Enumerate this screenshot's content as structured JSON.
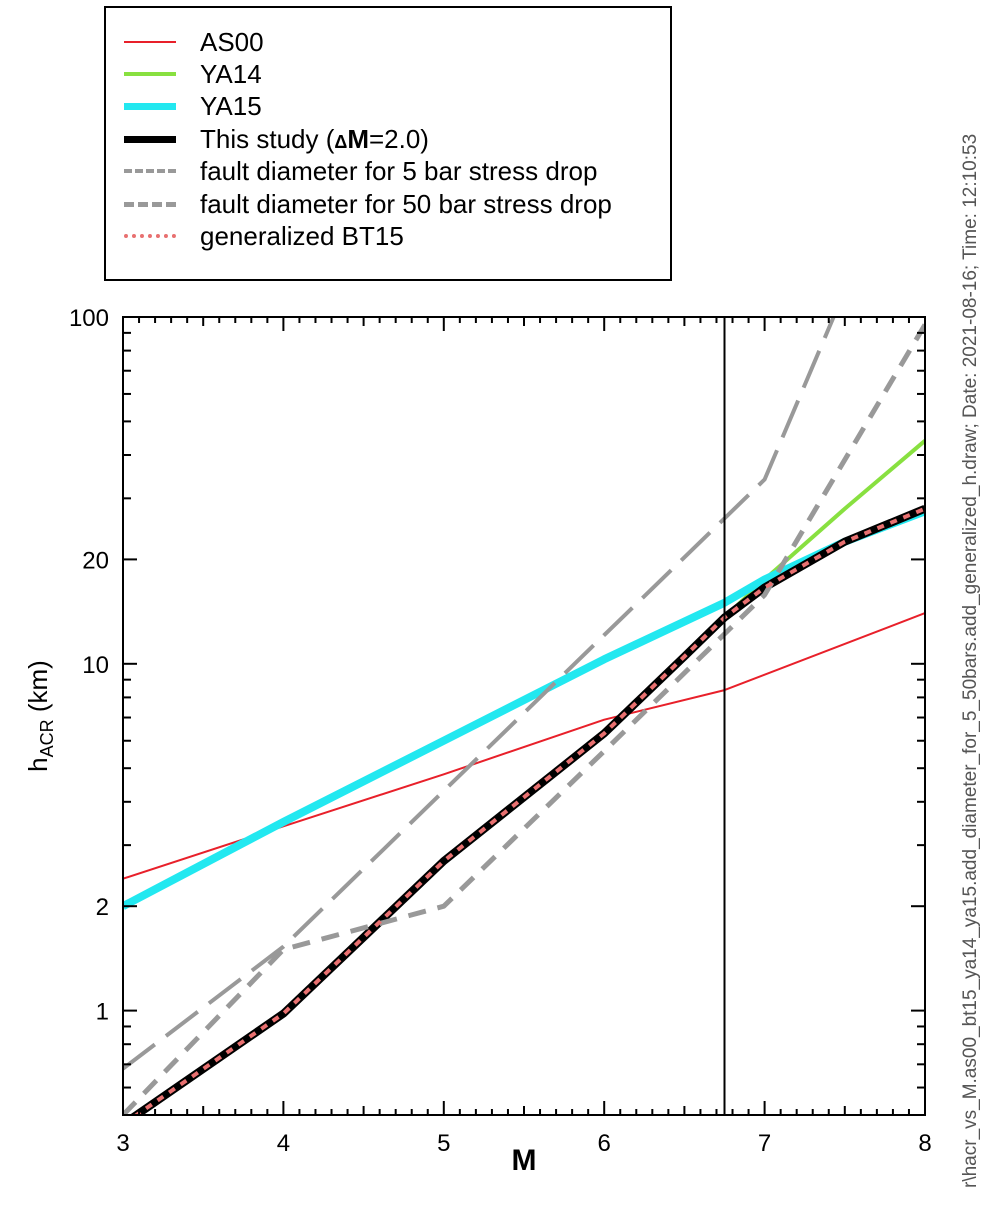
{
  "chart_data": {
    "type": "line",
    "xlabel": "M",
    "ylabel_main": "h",
    "ylabel_sub": "ACR",
    "ylabel_unit": " (km)",
    "xlim": [
      3,
      8
    ],
    "ylim": [
      0.5,
      100
    ],
    "yscale": "log",
    "x_ticks": [
      3,
      4,
      5,
      6,
      7,
      8
    ],
    "y_ticks": [
      1,
      2,
      10,
      20,
      100
    ],
    "vertical_line_x": 6.75,
    "legend_position": "top-left, above plot",
    "series": [
      {
        "name": "AS00",
        "color": "#e8202a",
        "style": "solid",
        "width": 2,
        "x": [
          3,
          4,
          5,
          6,
          6.75,
          8
        ],
        "y": [
          2.4,
          3.4,
          4.8,
          6.9,
          8.4,
          14
        ]
      },
      {
        "name": "YA14",
        "color": "#88e040",
        "style": "solid",
        "width": 4,
        "x": [
          3,
          4,
          5,
          6,
          6.75,
          7,
          7.5,
          8
        ],
        "y": [
          0.47,
          0.98,
          2.7,
          6.4,
          13.6,
          17.5,
          28,
          44
        ]
      },
      {
        "name": "YA15",
        "color": "#22e8f0",
        "style": "solid",
        "width": 8,
        "x": [
          3,
          4,
          5,
          6,
          6.75,
          7,
          7.5,
          8
        ],
        "y": [
          2.0,
          3.5,
          6.0,
          10.3,
          15.0,
          17.5,
          22.5,
          27.5
        ]
      },
      {
        "name": "This study (ΔM=2.0)",
        "name_prefix": "This study (",
        "name_delta": "Δ",
        "name_bold": "M",
        "name_suffix": "=2.0)",
        "color": "#000000",
        "style": "solid",
        "width": 8,
        "x": [
          3,
          4,
          5,
          6,
          6.5,
          6.75,
          7,
          7.5,
          8
        ],
        "y": [
          0.47,
          0.98,
          2.7,
          6.3,
          10.5,
          13.6,
          16.6,
          22.5,
          28
        ]
      },
      {
        "name": "fault diameter for 5 bar stress drop",
        "color": "#999999",
        "style": "longdash",
        "width": 4,
        "x": [
          3,
          4,
          5,
          6,
          7,
          7.43
        ],
        "y": [
          0.68,
          1.53,
          4.3,
          12.1,
          34,
          100
        ]
      },
      {
        "name": "fault diameter for 50 bar stress drop",
        "color": "#999999",
        "style": "dash",
        "width": 5,
        "x": [
          3,
          4,
          5,
          6,
          7,
          8
        ],
        "y": [
          0.5,
          1.5,
          2.0,
          5.6,
          15.8,
          95
        ]
      },
      {
        "name": "generalized BT15",
        "color": "#e87070",
        "style": "dot",
        "width": 4,
        "x": [
          3,
          4,
          5,
          6,
          6.5,
          6.75,
          7,
          7.5,
          8
        ],
        "y": [
          0.47,
          0.98,
          2.7,
          6.3,
          10.5,
          13.6,
          16.6,
          22.5,
          28
        ]
      }
    ]
  },
  "sidebar_caption": "r\\hacr_vs_M.as00_bt15_ya14_ya15.add_diameter_for_5_50bars.add_generalized_h.draw; Date: 2021-08-16; Time: 12:10:53"
}
